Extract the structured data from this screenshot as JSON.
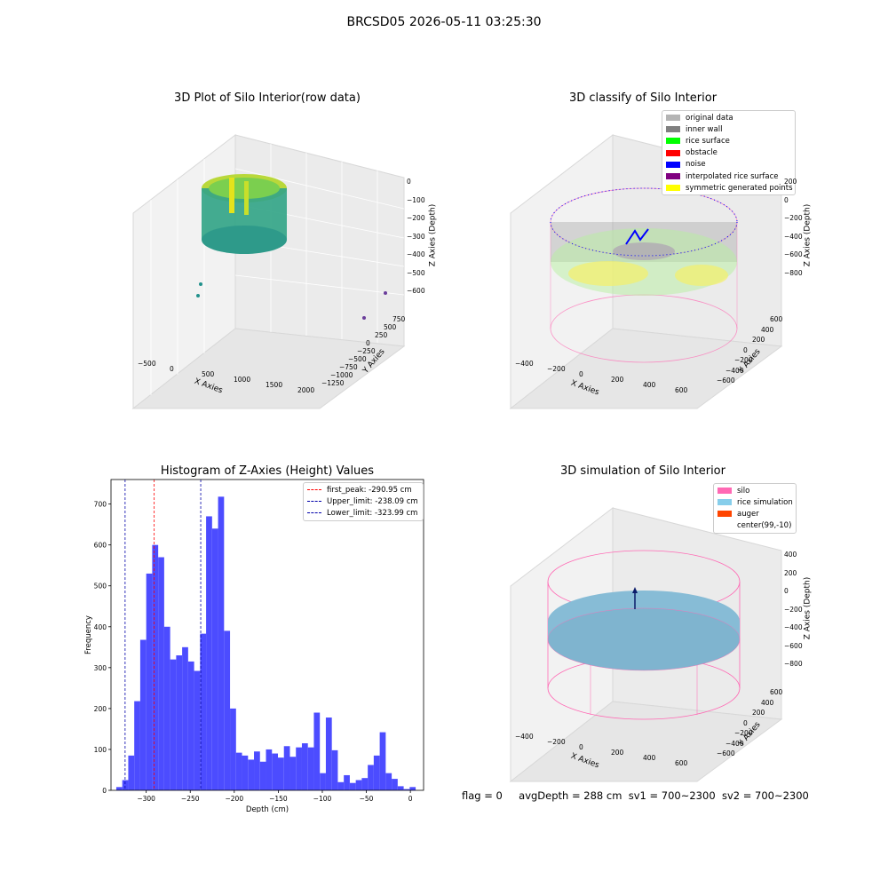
{
  "suptitle": "BRCSD05 2026-05-11 03:25:30",
  "panel1": {
    "title": "3D Plot of Silo Interior(row data)",
    "xlabel": "X Axies",
    "ylabel": "Y Axies",
    "zlabel": "Z Axies (Depth)",
    "xticks": [
      "−500",
      "0",
      "500",
      "1000",
      "1500",
      "2000"
    ],
    "yticks": [
      "750",
      "500",
      "250",
      "0",
      "−250",
      "−500",
      "−750",
      "−1000",
      "−1250"
    ],
    "zticks": [
      "0",
      "−100",
      "−200",
      "−300",
      "−400",
      "−500",
      "−600"
    ]
  },
  "panel2": {
    "title": "3D classify of Silo Interior",
    "xlabel": "X Axies",
    "ylabel": "Y Axies",
    "zlabel": "Z Axies (Depth)",
    "xticks": [
      "−400",
      "−200",
      "0",
      "200",
      "400",
      "600"
    ],
    "yticks": [
      "600",
      "400",
      "200",
      "0",
      "−200",
      "−400",
      "−600"
    ],
    "zticks": [
      "200",
      "0",
      "−200",
      "−400",
      "−600",
      "−800"
    ],
    "legend": [
      {
        "label": "original data",
        "color": "#b4b4b4"
      },
      {
        "label": "inner wall",
        "color": "#808080"
      },
      {
        "label": "rice surface",
        "color": "#00ff00"
      },
      {
        "label": "obstacle",
        "color": "#ff0000"
      },
      {
        "label": "noise",
        "color": "#0000ff"
      },
      {
        "label": "interpolated rice surface",
        "color": "#800080"
      },
      {
        "label": "symmetric generated points",
        "color": "#ffff00"
      }
    ]
  },
  "panel4": {
    "title": "3D simulation of Silo Interior",
    "xlabel": "X Axies",
    "ylabel": "Y Axies",
    "zlabel": "Z Axies (Depth)",
    "xticks": [
      "−400",
      "−200",
      "0",
      "200",
      "400",
      "600"
    ],
    "yticks": [
      "600",
      "400",
      "200",
      "0",
      "−200",
      "−400",
      "−600"
    ],
    "zticks": [
      "400",
      "200",
      "0",
      "−200",
      "−400",
      "−600",
      "−800"
    ],
    "legend": [
      {
        "label": "silo",
        "color": "#ff69b4"
      },
      {
        "label": "rice simulation",
        "color": "#87ceeb"
      },
      {
        "label": "auger",
        "color": "#ff4500"
      },
      {
        "label": "center(99,-10)",
        "color": ""
      }
    ]
  },
  "status": {
    "flag": "flag = 0",
    "avg": "avgDepth = 288 cm",
    "sv1": "sv1 = 700~2300",
    "sv2": "sv2 = 700~2300"
  },
  "chart_data": [
    {
      "type": "bar",
      "title": "Histogram of Z-Axies (Height) Values",
      "xlabel": "Depth (cm)",
      "ylabel": "Frequency",
      "xlim": [
        -340,
        15
      ],
      "ylim": [
        0,
        760
      ],
      "xticks": [
        -300,
        -250,
        -200,
        -150,
        -100,
        -50,
        0
      ],
      "yticks": [
        0,
        100,
        200,
        300,
        400,
        500,
        600,
        700
      ],
      "bin_width": 6.8,
      "bins": [
        {
          "x": -334.0,
          "value": 8
        },
        {
          "x": -327.2,
          "value": 25
        },
        {
          "x": -320.4,
          "value": 85
        },
        {
          "x": -313.6,
          "value": 218
        },
        {
          "x": -306.8,
          "value": 368
        },
        {
          "x": -300.0,
          "value": 530
        },
        {
          "x": -293.2,
          "value": 600
        },
        {
          "x": -286.4,
          "value": 570
        },
        {
          "x": -279.6,
          "value": 400
        },
        {
          "x": -272.8,
          "value": 320
        },
        {
          "x": -266.0,
          "value": 330
        },
        {
          "x": -259.2,
          "value": 350
        },
        {
          "x": -252.4,
          "value": 315
        },
        {
          "x": -245.6,
          "value": 292
        },
        {
          "x": -238.8,
          "value": 383
        },
        {
          "x": -232.0,
          "value": 670
        },
        {
          "x": -225.2,
          "value": 640
        },
        {
          "x": -218.4,
          "value": 718
        },
        {
          "x": -211.6,
          "value": 390
        },
        {
          "x": -204.8,
          "value": 200
        },
        {
          "x": -198.0,
          "value": 92
        },
        {
          "x": -191.2,
          "value": 85
        },
        {
          "x": -184.4,
          "value": 75
        },
        {
          "x": -177.6,
          "value": 95
        },
        {
          "x": -170.8,
          "value": 70
        },
        {
          "x": -164.0,
          "value": 100
        },
        {
          "x": -157.2,
          "value": 90
        },
        {
          "x": -150.4,
          "value": 80
        },
        {
          "x": -143.6,
          "value": 108
        },
        {
          "x": -136.8,
          "value": 82
        },
        {
          "x": -130.0,
          "value": 105
        },
        {
          "x": -123.2,
          "value": 115
        },
        {
          "x": -116.4,
          "value": 105
        },
        {
          "x": -109.6,
          "value": 190
        },
        {
          "x": -102.8,
          "value": 42
        },
        {
          "x": -96.0,
          "value": 178
        },
        {
          "x": -89.2,
          "value": 98
        },
        {
          "x": -82.4,
          "value": 20
        },
        {
          "x": -75.6,
          "value": 37
        },
        {
          "x": -68.8,
          "value": 18
        },
        {
          "x": -62.0,
          "value": 25
        },
        {
          "x": -55.2,
          "value": 30
        },
        {
          "x": -48.4,
          "value": 62
        },
        {
          "x": -41.6,
          "value": 85
        },
        {
          "x": -34.8,
          "value": 142
        },
        {
          "x": -28.0,
          "value": 42
        },
        {
          "x": -21.2,
          "value": 28
        },
        {
          "x": -14.4,
          "value": 10
        },
        {
          "x": -7.6,
          "value": 3
        },
        {
          "x": -0.8,
          "value": 8
        }
      ],
      "color": "#4c4cff",
      "reference_lines": [
        {
          "label": "first_peak: -290.95 cm",
          "x": -290.95,
          "color": "#ff0000"
        },
        {
          "label": "Upper_limit: -238.09 cm",
          "x": -238.09,
          "color": "#0000aa"
        },
        {
          "label": "Lower_limit: -323.99 cm",
          "x": -323.99,
          "color": "#0000aa"
        }
      ],
      "legend_position": "top-right"
    }
  ]
}
